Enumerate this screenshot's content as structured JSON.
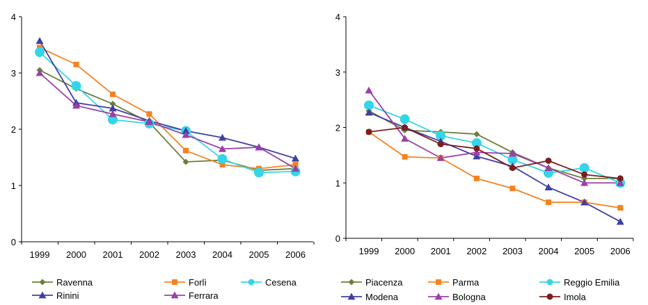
{
  "chart_data": [
    {
      "type": "line",
      "x": [
        "1999",
        "2000",
        "2001",
        "2002",
        "2003",
        "2004",
        "2005",
        "2006"
      ],
      "ylim": [
        0,
        4
      ],
      "yticks": [
        "0",
        "1",
        "2",
        "3",
        "4"
      ],
      "grid": false,
      "legend": "bottom",
      "series": [
        {
          "name": "Ravenna",
          "color": "#6B7F3A",
          "marker": "diamond",
          "values": [
            3.05,
            2.72,
            2.45,
            2.12,
            1.42,
            1.45,
            1.27,
            1.3
          ]
        },
        {
          "name": "Forlì",
          "color": "#F58220",
          "marker": "square",
          "values": [
            3.45,
            3.15,
            2.62,
            2.27,
            1.62,
            1.37,
            1.3,
            1.37
          ]
        },
        {
          "name": "Cesena",
          "color": "#33D6E8",
          "marker": "circle",
          "values": [
            3.37,
            2.77,
            2.17,
            2.1,
            1.97,
            1.47,
            1.23,
            1.25
          ]
        },
        {
          "name": "Rinini",
          "color": "#3F3FA5",
          "marker": "triangle",
          "values": [
            3.57,
            2.47,
            2.37,
            2.15,
            1.97,
            1.85,
            1.68,
            1.48
          ]
        },
        {
          "name": "Ferrara",
          "color": "#9B3FA8",
          "marker": "triangle",
          "values": [
            3.0,
            2.42,
            2.27,
            2.13,
            1.9,
            1.65,
            1.68,
            1.3
          ]
        }
      ]
    },
    {
      "type": "line",
      "x": [
        "1999",
        "2000",
        "2001",
        "2002",
        "2003",
        "2004",
        "2005",
        "2006"
      ],
      "ylim": [
        0,
        4
      ],
      "yticks": [
        "0",
        "1",
        "2",
        "3",
        "4"
      ],
      "grid": false,
      "legend": "bottom",
      "series": [
        {
          "name": "Piacenza",
          "color": "#6B7F3A",
          "marker": "diamond",
          "values": [
            2.3,
            1.95,
            1.92,
            1.88,
            1.55,
            1.27,
            1.08,
            1.08
          ]
        },
        {
          "name": "Parma",
          "color": "#F58220",
          "marker": "square",
          "values": [
            1.92,
            1.47,
            1.45,
            1.08,
            0.9,
            0.65,
            0.65,
            0.55
          ]
        },
        {
          "name": "Reggio Emilia",
          "color": "#33D6E8",
          "marker": "circle",
          "values": [
            2.4,
            2.15,
            1.85,
            1.72,
            1.42,
            1.18,
            1.27,
            1.0
          ]
        },
        {
          "name": "Modena",
          "color": "#3F3FA5",
          "marker": "triangle",
          "values": [
            2.27,
            2.0,
            1.75,
            1.48,
            1.3,
            0.92,
            0.65,
            0.3
          ]
        },
        {
          "name": "Bologna",
          "color": "#9B3FA8",
          "marker": "triangle",
          "values": [
            2.67,
            1.8,
            1.45,
            1.55,
            1.53,
            1.27,
            1.0,
            1.0
          ]
        },
        {
          "name": "Imola",
          "color": "#7A1E1E",
          "marker": "circle-small",
          "values": [
            1.92,
            2.0,
            1.7,
            1.62,
            1.27,
            1.4,
            1.15,
            1.08
          ]
        }
      ]
    }
  ]
}
